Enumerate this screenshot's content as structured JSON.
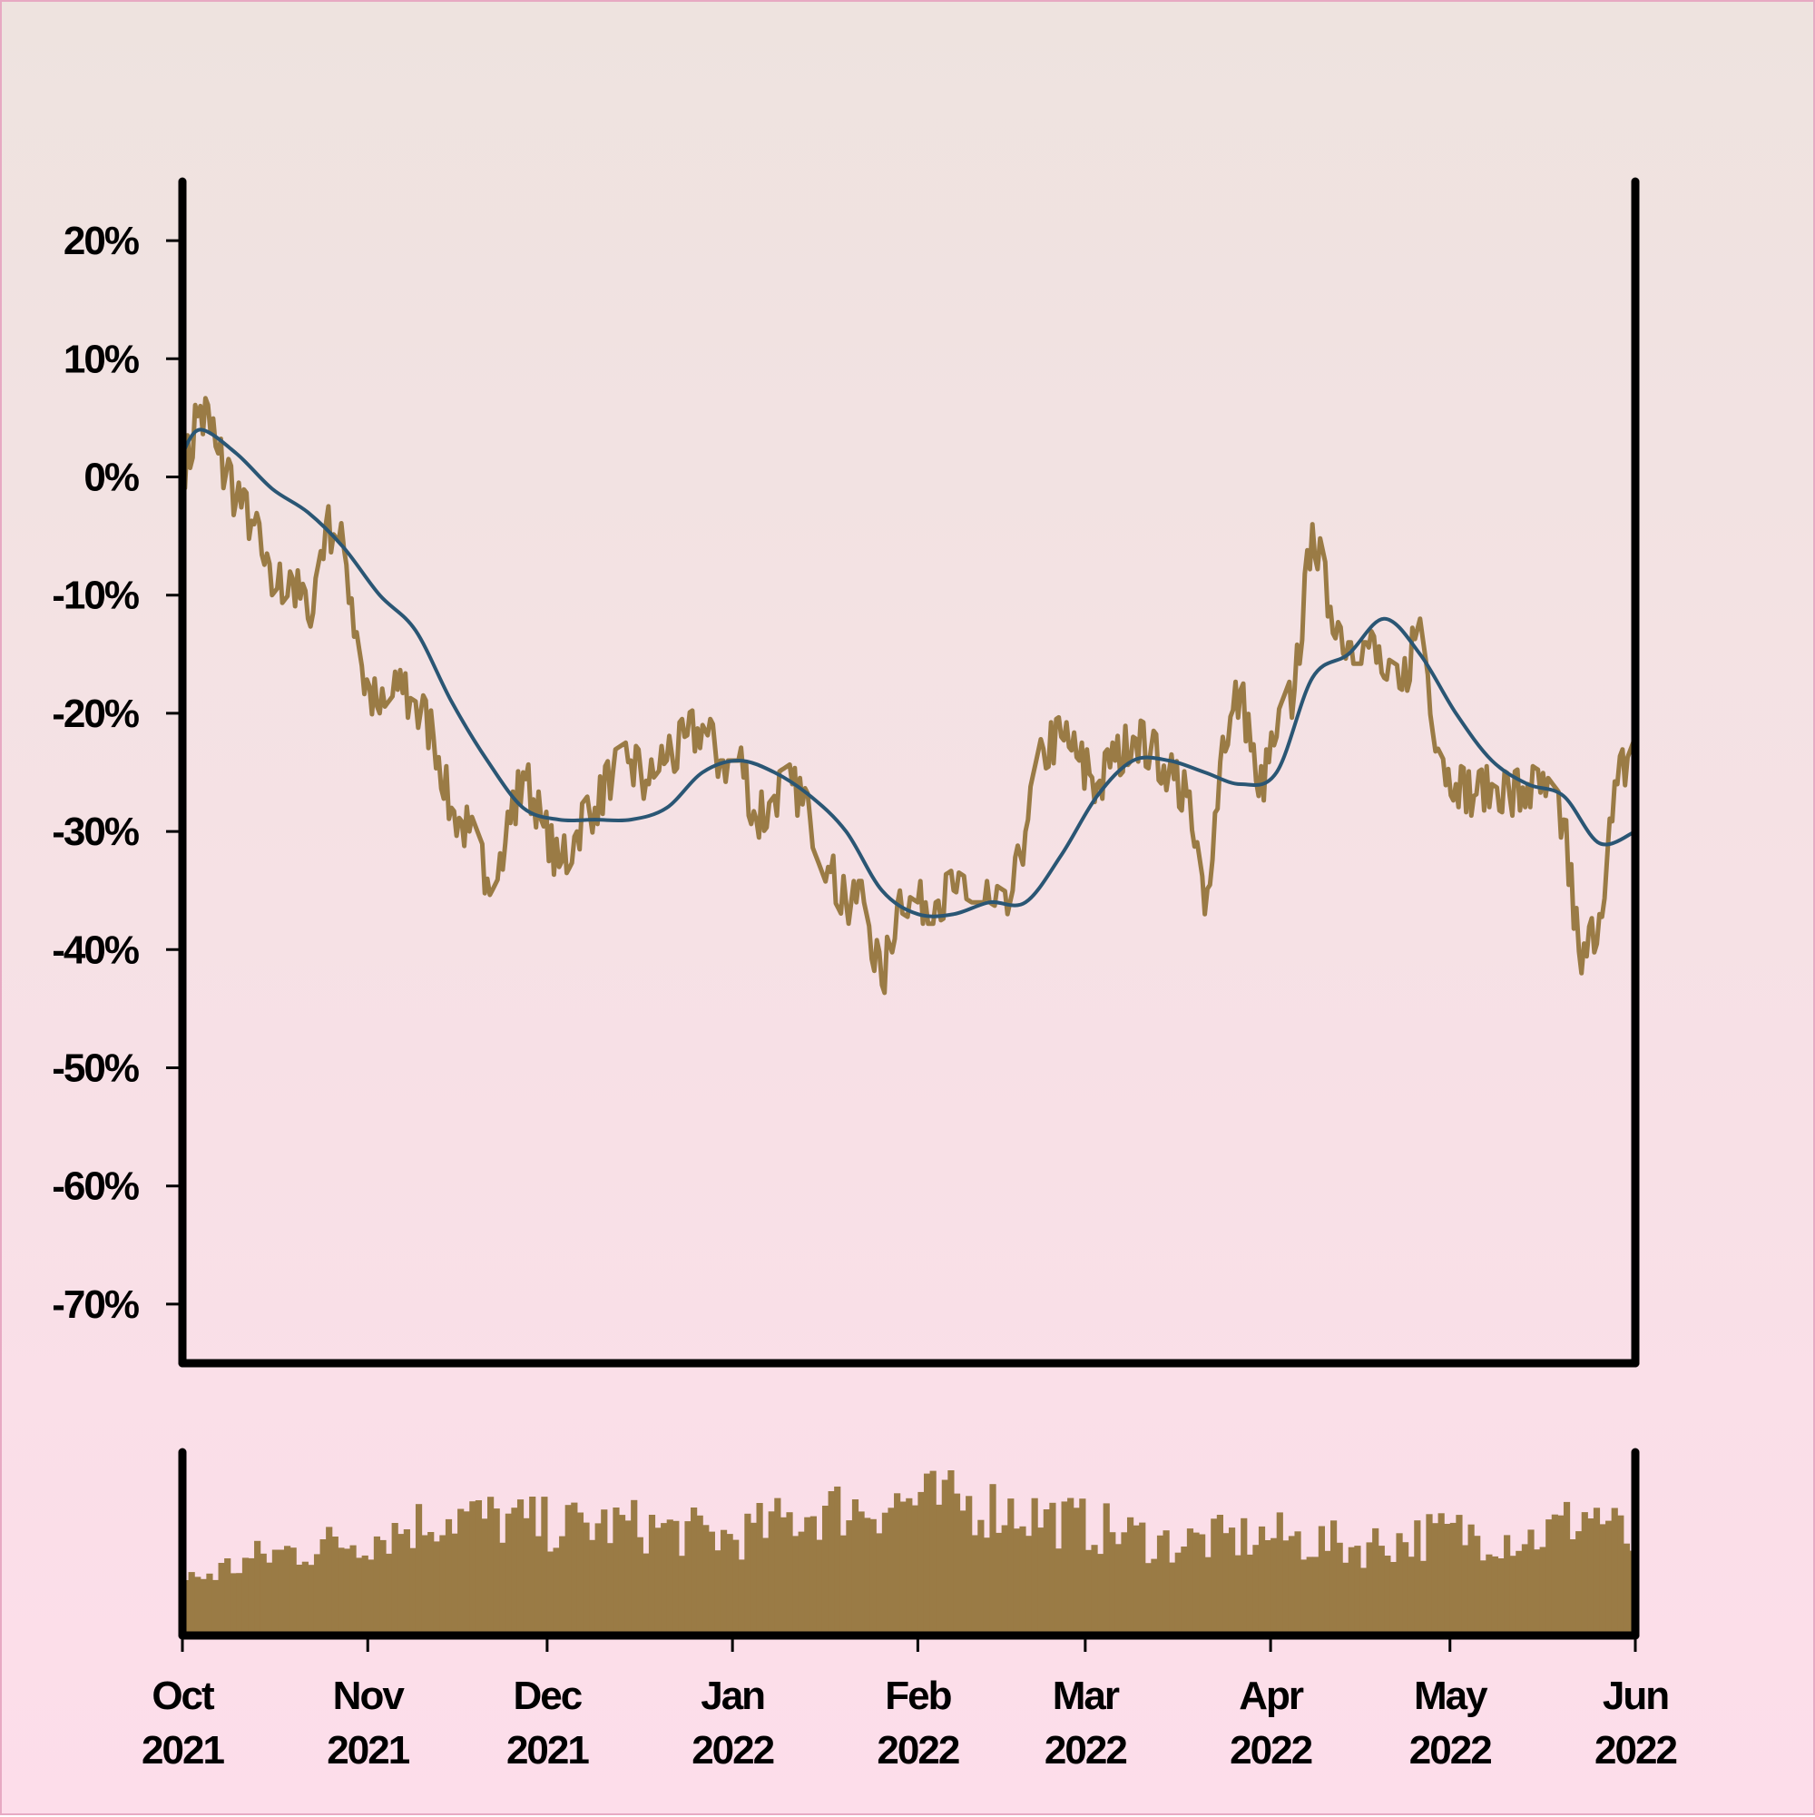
{
  "chart_data": [
    {
      "type": "line",
      "title": "",
      "xlabel": "",
      "ylabel": "",
      "x_range": [
        "2021-10-01",
        "2022-06-01"
      ],
      "ylim": [
        -75,
        25
      ],
      "y_ticks": [
        20,
        10,
        0,
        -10,
        -20,
        -30,
        -40,
        -50,
        -60,
        -70
      ],
      "y_tick_labels": [
        "20%",
        "10%",
        "0%",
        "-10%",
        "-20%",
        "-30%",
        "-40%",
        "-50%",
        "-60%",
        "-70%"
      ],
      "grid": false,
      "legend": "none",
      "series": [
        {
          "color": "#9a7b45",
          "style": "noisy",
          "points": [
            [
              "2021-10-01",
              0
            ],
            [
              "2021-10-04",
              6
            ],
            [
              "2021-10-07",
              2
            ],
            [
              "2021-10-10",
              -2
            ],
            [
              "2021-10-13",
              -4
            ],
            [
              "2021-10-16",
              -10
            ],
            [
              "2021-10-19",
              -8
            ],
            [
              "2021-10-22",
              -12
            ],
            [
              "2021-10-25",
              -4
            ],
            [
              "2021-10-28",
              -6
            ],
            [
              "2021-10-31",
              -16
            ],
            [
              "2021-11-03",
              -20
            ],
            [
              "2021-11-06",
              -18
            ],
            [
              "2021-11-09",
              -19
            ],
            [
              "2021-11-12",
              -22
            ],
            [
              "2021-11-15",
              -28
            ],
            [
              "2021-11-18",
              -30
            ],
            [
              "2021-11-21",
              -34
            ],
            [
              "2021-11-24",
              -31
            ],
            [
              "2021-11-27",
              -25
            ],
            [
              "2021-11-30",
              -29
            ],
            [
              "2021-12-03",
              -33
            ],
            [
              "2021-12-06",
              -30
            ],
            [
              "2021-12-09",
              -28
            ],
            [
              "2021-12-12",
              -25
            ],
            [
              "2021-12-15",
              -24
            ],
            [
              "2021-12-18",
              -26
            ],
            [
              "2021-12-21",
              -24
            ],
            [
              "2021-12-24",
              -22
            ],
            [
              "2021-12-27",
              -21
            ],
            [
              "2021-12-30",
              -24
            ],
            [
              "2022-01-02",
              -24
            ],
            [
              "2022-01-05",
              -29
            ],
            [
              "2022-01-08",
              -27
            ],
            [
              "2022-01-11",
              -26
            ],
            [
              "2022-01-14",
              -29
            ],
            [
              "2022-01-17",
              -33
            ],
            [
              "2022-01-20",
              -36
            ],
            [
              "2022-01-23",
              -36
            ],
            [
              "2022-01-26",
              -43
            ],
            [
              "2022-01-29",
              -35
            ],
            [
              "2022-02-01",
              -36
            ],
            [
              "2022-02-04",
              -36
            ],
            [
              "2022-02-07",
              -35
            ],
            [
              "2022-02-10",
              -36
            ],
            [
              "2022-02-13",
              -36
            ],
            [
              "2022-02-16",
              -37
            ],
            [
              "2022-02-19",
              -30
            ],
            [
              "2022-02-22",
              -23
            ],
            [
              "2022-02-25",
              -22
            ],
            [
              "2022-02-28",
              -24
            ],
            [
              "2022-03-03",
              -26
            ],
            [
              "2022-03-06",
              -24
            ],
            [
              "2022-03-09",
              -22
            ],
            [
              "2022-03-12",
              -23
            ],
            [
              "2022-03-15",
              -25
            ],
            [
              "2022-03-18",
              -27
            ],
            [
              "2022-03-21",
              -37
            ],
            [
              "2022-03-24",
              -22
            ],
            [
              "2022-03-27",
              -18
            ],
            [
              "2022-03-30",
              -27
            ],
            [
              "2022-04-02",
              -22
            ],
            [
              "2022-04-05",
              -18
            ],
            [
              "2022-04-08",
              -4
            ],
            [
              "2022-04-11",
              -11
            ],
            [
              "2022-04-14",
              -14
            ],
            [
              "2022-04-17",
              -14
            ],
            [
              "2022-04-20",
              -17
            ],
            [
              "2022-04-23",
              -18
            ],
            [
              "2022-04-26",
              -12
            ],
            [
              "2022-04-29",
              -23
            ],
            [
              "2022-05-02",
              -26
            ],
            [
              "2022-05-05",
              -27
            ],
            [
              "2022-05-08",
              -26
            ],
            [
              "2022-05-11",
              -27
            ],
            [
              "2022-05-14",
              -26
            ],
            [
              "2022-05-17",
              -27
            ],
            [
              "2022-05-20",
              -29
            ],
            [
              "2022-05-23",
              -42
            ],
            [
              "2022-05-26",
              -37
            ],
            [
              "2022-05-29",
              -26
            ],
            [
              "2022-06-01",
              -22
            ]
          ]
        },
        {
          "color": "#2a5674",
          "style": "smooth",
          "points": [
            [
              "2021-10-01",
              2
            ],
            [
              "2021-10-04",
              4
            ],
            [
              "2021-10-10",
              2
            ],
            [
              "2021-10-16",
              -1
            ],
            [
              "2021-10-22",
              -3
            ],
            [
              "2021-10-28",
              -6
            ],
            [
              "2021-11-03",
              -10
            ],
            [
              "2021-11-09",
              -13
            ],
            [
              "2021-11-15",
              -19
            ],
            [
              "2021-11-21",
              -24
            ],
            [
              "2021-11-27",
              -28
            ],
            [
              "2021-12-03",
              -29
            ],
            [
              "2021-12-09",
              -29
            ],
            [
              "2021-12-15",
              -29
            ],
            [
              "2021-12-21",
              -28
            ],
            [
              "2021-12-27",
              -25
            ],
            [
              "2022-01-02",
              -24
            ],
            [
              "2022-01-08",
              -25
            ],
            [
              "2022-01-14",
              -27
            ],
            [
              "2022-01-20",
              -30
            ],
            [
              "2022-01-26",
              -35
            ],
            [
              "2022-02-01",
              -37
            ],
            [
              "2022-02-07",
              -37
            ],
            [
              "2022-02-13",
              -36
            ],
            [
              "2022-02-19",
              -36
            ],
            [
              "2022-02-25",
              -32
            ],
            [
              "2022-03-03",
              -27
            ],
            [
              "2022-03-09",
              -24
            ],
            [
              "2022-03-15",
              -24
            ],
            [
              "2022-03-21",
              -25
            ],
            [
              "2022-03-27",
              -26
            ],
            [
              "2022-04-02",
              -25
            ],
            [
              "2022-04-08",
              -17
            ],
            [
              "2022-04-14",
              -15
            ],
            [
              "2022-04-20",
              -12
            ],
            [
              "2022-04-26",
              -15
            ],
            [
              "2022-05-02",
              -20
            ],
            [
              "2022-05-08",
              -24
            ],
            [
              "2022-05-14",
              -26
            ],
            [
              "2022-05-20",
              -27
            ],
            [
              "2022-05-26",
              -31
            ],
            [
              "2022-06-01",
              -30
            ]
          ]
        }
      ]
    },
    {
      "type": "bar",
      "title": "",
      "xlabel": "",
      "ylabel": "",
      "x_range": [
        "2021-10-01",
        "2022-06-01"
      ],
      "x_ticks": [
        "2021-10-01",
        "2021-11-01",
        "2021-12-01",
        "2022-01-01",
        "2022-02-01",
        "2022-03-01",
        "2022-04-01",
        "2022-05-01",
        "2022-06-01"
      ],
      "x_tick_labels": [
        [
          "Oct",
          "2021"
        ],
        [
          "Nov",
          "2021"
        ],
        [
          "Dec",
          "2021"
        ],
        [
          "Jan",
          "2022"
        ],
        [
          "Feb",
          "2022"
        ],
        [
          "Mar",
          "2022"
        ],
        [
          "Apr",
          "2022"
        ],
        [
          "May",
          "2022"
        ],
        [
          "Jun",
          "2022"
        ]
      ],
      "ylim": [
        0,
        1
      ],
      "color": "#9a7b45",
      "volume_profile": [
        [
          "2021-10-01",
          0.3
        ],
        [
          "2021-10-15",
          0.45
        ],
        [
          "2021-11-01",
          0.55
        ],
        [
          "2021-11-15",
          0.68
        ],
        [
          "2021-12-01",
          0.62
        ],
        [
          "2021-12-15",
          0.62
        ],
        [
          "2022-01-01",
          0.55
        ],
        [
          "2022-01-15",
          0.7
        ],
        [
          "2022-02-01",
          0.76
        ],
        [
          "2022-02-15",
          0.72
        ],
        [
          "2022-03-01",
          0.62
        ],
        [
          "2022-03-15",
          0.52
        ],
        [
          "2022-04-01",
          0.56
        ],
        [
          "2022-04-15",
          0.5
        ],
        [
          "2022-05-01",
          0.58
        ],
        [
          "2022-05-15",
          0.55
        ],
        [
          "2022-05-25",
          0.7
        ],
        [
          "2022-06-01",
          0.5
        ]
      ]
    }
  ]
}
